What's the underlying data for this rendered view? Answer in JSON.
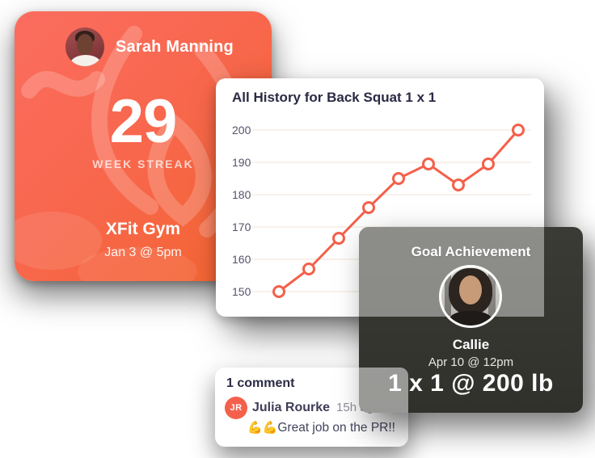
{
  "athlete_card": {
    "name": "Sarah Manning",
    "streak_value": "29",
    "streak_label": "WEEK STREAK",
    "gym_name": "XFit Gym",
    "session_datetime": "Jan 3 @ 5pm",
    "gradient_start": "#fb6d5f",
    "gradient_end": "#f3652f"
  },
  "chart_card": {
    "title": "All History for Back Squat 1 x 1"
  },
  "chart_data": {
    "type": "line",
    "title": "All History for Back Squat 1 x 1",
    "x": [
      1,
      2,
      3,
      4,
      5,
      6,
      7,
      8,
      9
    ],
    "values": [
      150,
      157,
      166.5,
      176,
      185,
      189.5,
      183,
      189.5,
      200
    ],
    "yticks": [
      200,
      190,
      180,
      170,
      160,
      150
    ],
    "ylim": [
      150,
      200
    ],
    "ylabel": "",
    "xlabel": "",
    "grid": "horizontal",
    "legend": "none",
    "line_color": "#f4604a",
    "marker": "open-circle",
    "gridline_color": "#f6ece3",
    "tick_label_color": "#53536b"
  },
  "goal_card": {
    "title": "Goal Achievement",
    "name": "Callie",
    "datetime": "Apr 10 @ 12pm",
    "result": "1 x 1 @ 200 lb",
    "background": "#3b3b36"
  },
  "comment_card": {
    "count_label": "1 comment",
    "author_initials": "JR",
    "author_name": "Julia Rourke",
    "timestamp": "15h ago",
    "emoji": "💪💪",
    "body": "Great job on the PR!!",
    "avatar_color": "#f4604b"
  },
  "icons": {
    "flame_watermark": "flame-watermark-icon"
  }
}
